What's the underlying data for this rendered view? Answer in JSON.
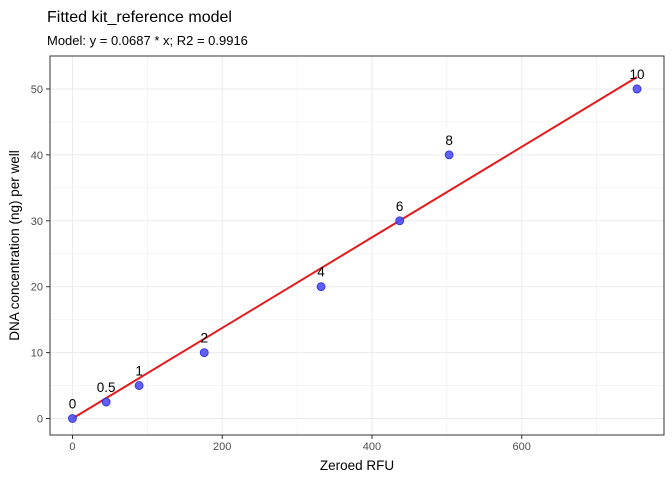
{
  "chart_data": {
    "type": "scatter",
    "title": "Fitted kit_reference model",
    "subtitle": "Model: y = 0.0687 * x; R2 = 0.9916",
    "xlabel": "Zeroed RFU",
    "ylabel": "DNA concentration (ng) per well",
    "xlim": [
      -30,
      790
    ],
    "ylim": [
      -2.5,
      55
    ],
    "x_ticks": [
      0,
      200,
      400,
      600
    ],
    "y_ticks": [
      0,
      10,
      20,
      30,
      40,
      50
    ],
    "grid": true,
    "legend": "none",
    "points": [
      {
        "x": 0,
        "y": 0,
        "label": "0"
      },
      {
        "x": 45,
        "y": 2.5,
        "label": "0.5"
      },
      {
        "x": 89,
        "y": 5,
        "label": "1"
      },
      {
        "x": 176,
        "y": 10,
        "label": "2"
      },
      {
        "x": 332,
        "y": 20,
        "label": "4"
      },
      {
        "x": 437,
        "y": 30,
        "label": "6"
      },
      {
        "x": 503,
        "y": 40,
        "label": "8"
      },
      {
        "x": 754,
        "y": 50,
        "label": "10"
      }
    ],
    "fit": {
      "slope": 0.0687,
      "intercept": 0,
      "x_range": [
        0,
        754
      ]
    },
    "colors": {
      "point_fill": "#4f4ff5",
      "point_stroke": "#2a2ad8",
      "fit_line": "#e41a1c",
      "grid": "#ebebeb",
      "panel_border": "#333333"
    }
  }
}
